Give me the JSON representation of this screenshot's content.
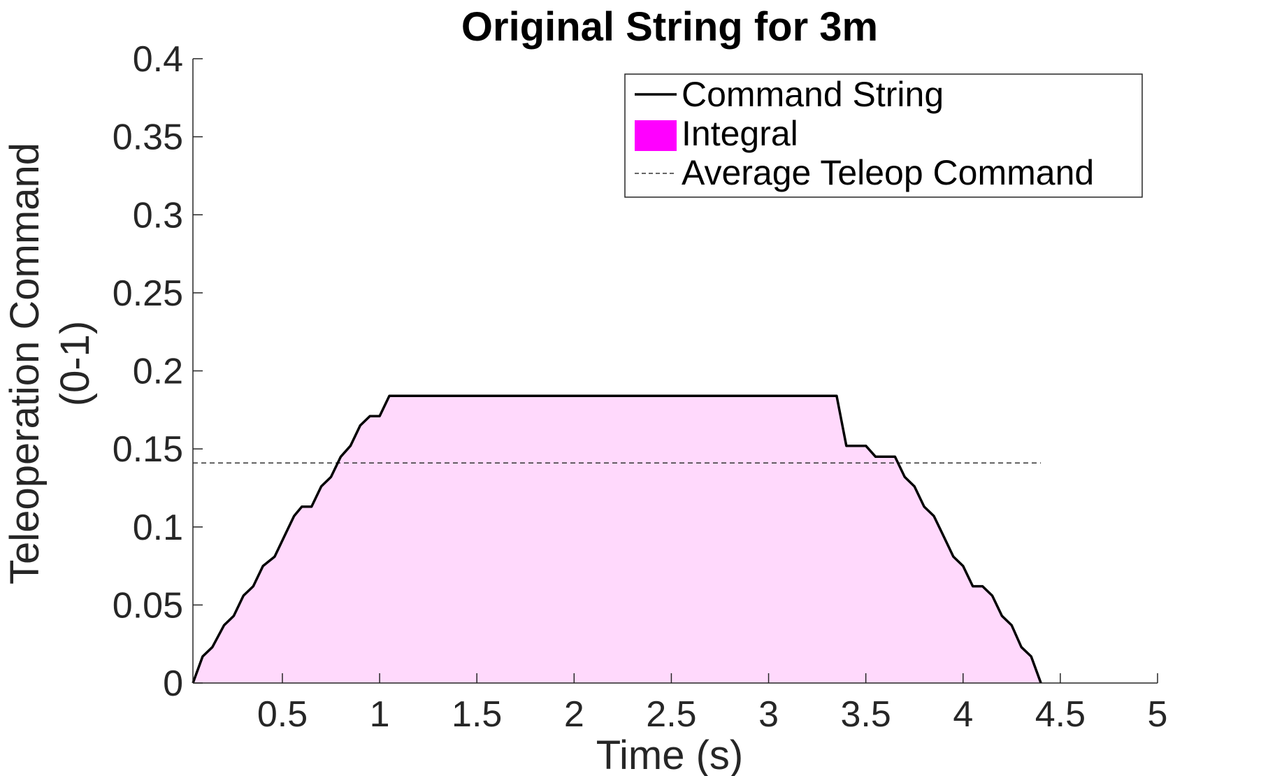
{
  "chart_data": {
    "type": "area",
    "title": "Original String for 3m",
    "xlabel": "Time (s)",
    "ylabel_lines": [
      "Teleoperation Command",
      "(0-1)"
    ],
    "xlim": [
      0.04,
      5
    ],
    "ylim": [
      0,
      0.4
    ],
    "xticks": [
      0.5,
      1,
      1.5,
      2,
      2.5,
      3,
      3.5,
      4,
      4.5,
      5
    ],
    "xtick_labels": [
      "0.5",
      "1",
      "1.5",
      "2",
      "2.5",
      "3",
      "3.5",
      "4",
      "4.5",
      "5"
    ],
    "yticks": [
      0,
      0.05,
      0.1,
      0.15,
      0.2,
      0.25,
      0.3,
      0.35,
      0.4
    ],
    "ytick_labels": [
      "0",
      "0.05",
      "0.1",
      "0.15",
      "0.2",
      "0.25",
      "0.3",
      "0.35",
      "0.4"
    ],
    "grid": false,
    "legend_position": "top-right",
    "series": [
      {
        "name": "Command String",
        "kind": "line",
        "color": "#000000",
        "x": [
          0.04,
          0.09,
          0.14,
          0.2,
          0.25,
          0.3,
          0.35,
          0.4,
          0.46,
          0.51,
          0.56,
          0.6,
          0.65,
          0.7,
          0.75,
          0.8,
          0.85,
          0.9,
          0.95,
          1.0,
          1.05,
          3.35,
          3.4,
          3.5,
          3.55,
          3.65,
          3.7,
          3.75,
          3.8,
          3.85,
          3.9,
          3.95,
          4.0,
          4.05,
          4.1,
          4.15,
          4.2,
          4.25,
          4.3,
          4.35,
          4.4
        ],
        "y": [
          0,
          0.017,
          0.023,
          0.037,
          0.043,
          0.056,
          0.062,
          0.075,
          0.081,
          0.094,
          0.107,
          0.113,
          0.113,
          0.126,
          0.132,
          0.145,
          0.152,
          0.165,
          0.171,
          0.171,
          0.184,
          0.184,
          0.152,
          0.152,
          0.145,
          0.145,
          0.132,
          0.126,
          0.113,
          0.107,
          0.094,
          0.081,
          0.075,
          0.062,
          0.062,
          0.056,
          0.043,
          0.037,
          0.023,
          0.017,
          0
        ]
      },
      {
        "name": "Integral",
        "kind": "area",
        "color": "#ff00ff",
        "fill": "#ffd9fc"
      },
      {
        "name": "Average Teleop Command",
        "kind": "hline",
        "color": "#333333",
        "x_range": [
          0.04,
          4.4
        ],
        "y": 0.141
      }
    ]
  }
}
